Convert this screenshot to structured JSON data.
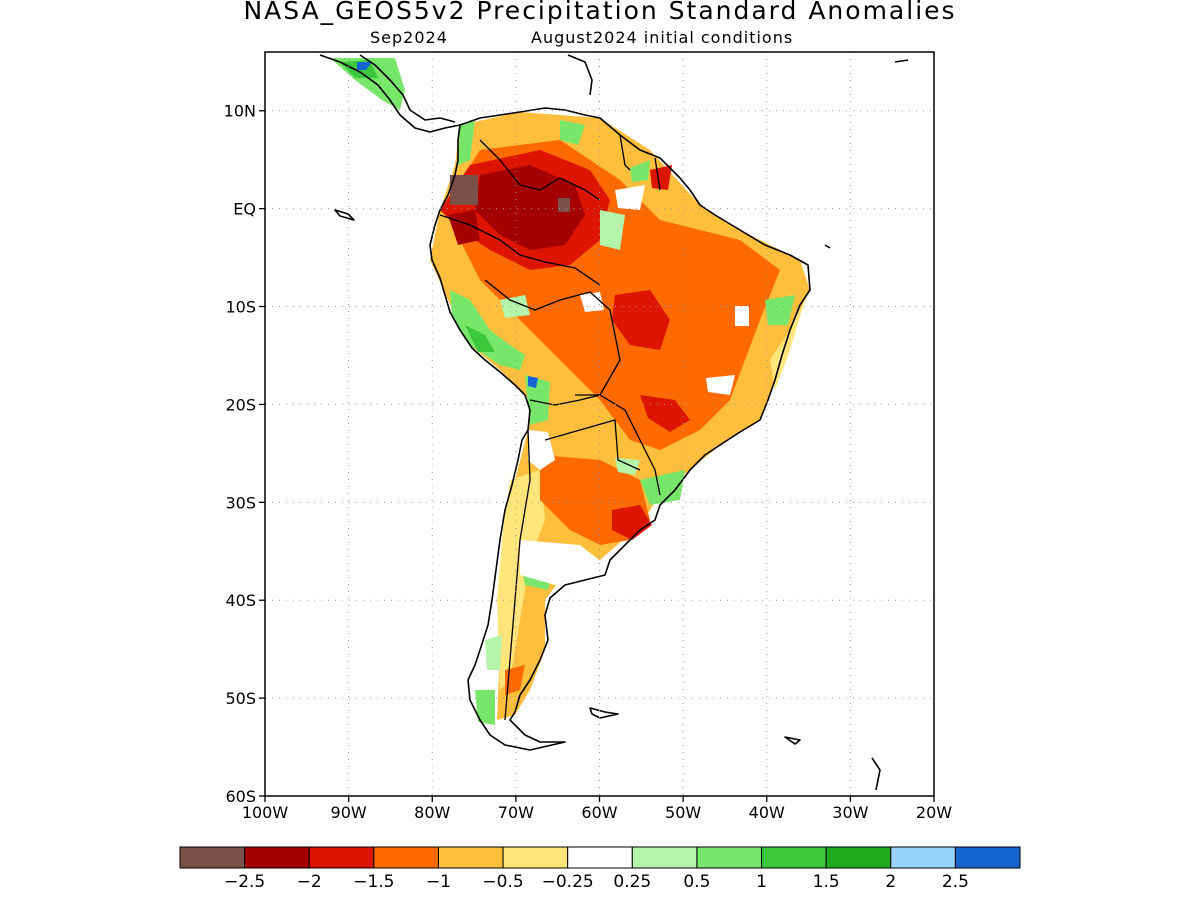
{
  "title": "NASA_GEOS5v2 Precipitation Standard Anomalies",
  "subtitle_left": "Sep2024",
  "subtitle_right": "August2024 initial conditions",
  "map": {
    "lon_range": [
      -100,
      -20
    ],
    "lat_range": [
      -60,
      16
    ],
    "lat_ticks": [
      {
        "value": 10,
        "label": "10N"
      },
      {
        "value": 0,
        "label": "EQ"
      },
      {
        "value": -10,
        "label": "10S"
      },
      {
        "value": -20,
        "label": "20S"
      },
      {
        "value": -30,
        "label": "30S"
      },
      {
        "value": -40,
        "label": "40S"
      },
      {
        "value": -50,
        "label": "50S"
      },
      {
        "value": -60,
        "label": "60S"
      }
    ],
    "lon_ticks": [
      {
        "value": -100,
        "label": "100W"
      },
      {
        "value": -90,
        "label": "90W"
      },
      {
        "value": -80,
        "label": "80W"
      },
      {
        "value": -70,
        "label": "70W"
      },
      {
        "value": -60,
        "label": "60W"
      },
      {
        "value": -50,
        "label": "50W"
      },
      {
        "value": -40,
        "label": "40W"
      },
      {
        "value": -30,
        "label": "30W"
      },
      {
        "value": -20,
        "label": "20W"
      }
    ],
    "grid": "dotted"
  },
  "colorbar": {
    "colors": [
      "#7a5048",
      "#a50000",
      "#dd1400",
      "#ff6a00",
      "#ffbe3c",
      "#ffe57a",
      "#ffffff",
      "#b4f5aa",
      "#78e66a",
      "#3cc83c",
      "#1eaa1e",
      "#96d2fa",
      "#1464d2"
    ],
    "labels": [
      "−2.5",
      "−2",
      "−1.5",
      "−1",
      "−0.5",
      "−0.25",
      "0.25",
      "0.5",
      "1",
      "1.5",
      "2",
      "2.5"
    ]
  }
}
